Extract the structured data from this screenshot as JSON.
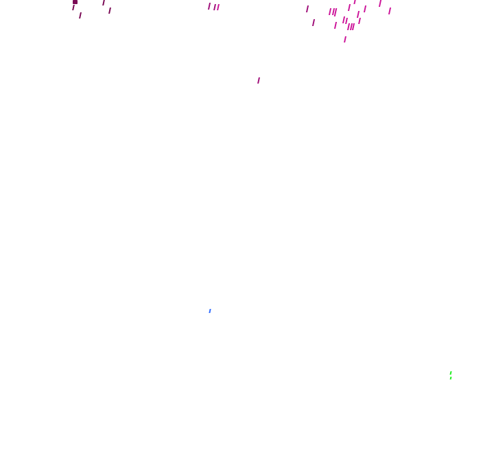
{
  "scene": {
    "background": "#ffffff",
    "colors": {
      "dark_magenta": "#7a0a55",
      "magenta": "#a0107a",
      "bright_magenta": "#cc1499",
      "blue": "#2f6bff",
      "green": "#22ee22"
    }
  }
}
